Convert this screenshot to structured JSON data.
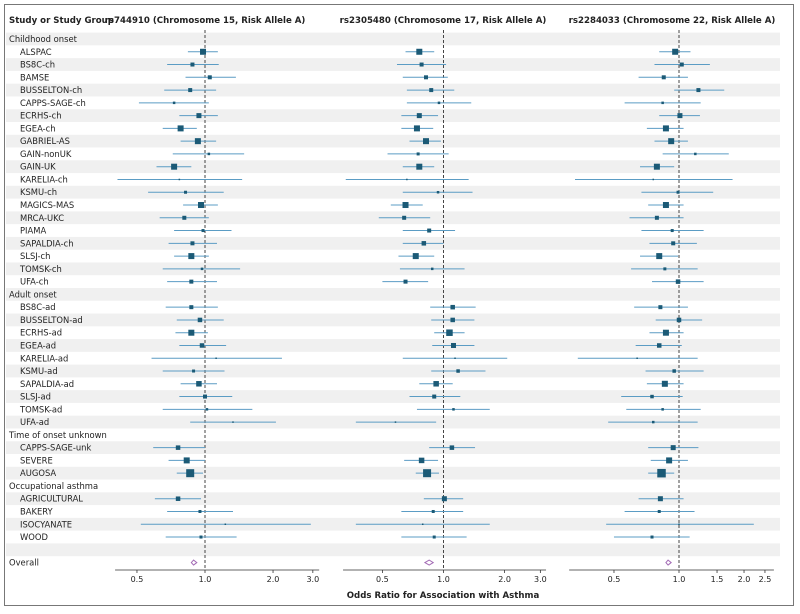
{
  "chart_data": {
    "type": "forest",
    "column_header": "Study or Study Group",
    "xlabel": "Odds Ratio for Association with Asthma",
    "scale": "log",
    "reference_line": 1.0,
    "colors": {
      "box": "#1b5a76",
      "ci": "#5b9cc4",
      "ref_line": "#444444",
      "diamond": "#a36bb5",
      "band": "#f0f0f0"
    },
    "rows": [
      {
        "label": "Childhood onset",
        "type": "group"
      },
      {
        "label": "ALSPAC",
        "type": "study"
      },
      {
        "label": "BS8C-ch",
        "type": "study"
      },
      {
        "label": "BAMSE",
        "type": "study"
      },
      {
        "label": "BUSSELTON-ch",
        "type": "study"
      },
      {
        "label": "CAPPS-SAGE-ch",
        "type": "study"
      },
      {
        "label": "ECRHS-ch",
        "type": "study"
      },
      {
        "label": "EGEA-ch",
        "type": "study"
      },
      {
        "label": "GABRIEL-AS",
        "type": "study"
      },
      {
        "label": "GAIN-nonUK",
        "type": "study"
      },
      {
        "label": "GAIN-UK",
        "type": "study"
      },
      {
        "label": "KARELIA-ch",
        "type": "study"
      },
      {
        "label": "KSMU-ch",
        "type": "study"
      },
      {
        "label": "MAGICS-MAS",
        "type": "study"
      },
      {
        "label": "MRCA-UKC",
        "type": "study"
      },
      {
        "label": "PIAMA",
        "type": "study"
      },
      {
        "label": "SAPALDIA-ch",
        "type": "study"
      },
      {
        "label": "SLSJ-ch",
        "type": "study"
      },
      {
        "label": "TOMSK-ch",
        "type": "study"
      },
      {
        "label": "UFA-ch",
        "type": "study"
      },
      {
        "label": "Adult onset",
        "type": "group"
      },
      {
        "label": "BS8C-ad",
        "type": "study"
      },
      {
        "label": "BUSSELTON-ad",
        "type": "study"
      },
      {
        "label": "ECRHS-ad",
        "type": "study"
      },
      {
        "label": "EGEA-ad",
        "type": "study"
      },
      {
        "label": "KARELIA-ad",
        "type": "study"
      },
      {
        "label": "KSMU-ad",
        "type": "study"
      },
      {
        "label": "SAPALDIA-ad",
        "type": "study"
      },
      {
        "label": "SLSJ-ad",
        "type": "study"
      },
      {
        "label": "TOMSK-ad",
        "type": "study"
      },
      {
        "label": "UFA-ad",
        "type": "study"
      },
      {
        "label": "Time of onset unknown",
        "type": "group"
      },
      {
        "label": "CAPPS-SAGE-unk",
        "type": "study"
      },
      {
        "label": "SEVERE",
        "type": "study"
      },
      {
        "label": "AUGOSA",
        "type": "study"
      },
      {
        "label": "Occupational asthma",
        "type": "group"
      },
      {
        "label": "AGRICULTURAL",
        "type": "study"
      },
      {
        "label": "BAKERY",
        "type": "study"
      },
      {
        "label": "ISOCYANATE",
        "type": "study"
      },
      {
        "label": "WOOD",
        "type": "study"
      },
      {
        "label": "",
        "type": "blank"
      },
      {
        "label": "Overall",
        "type": "overall"
      }
    ],
    "panels": [
      {
        "title": "rs744910 (Chromosome 15, Risk Allele A)",
        "xlim": [
          0.4,
          3.2
        ],
        "ticks": [
          0.5,
          1.0,
          2.0,
          3.0
        ],
        "tick_labels": [
          "0.5",
          "1.0",
          "2.0",
          "3.0"
        ],
        "estimates": [
          null,
          [
            0.98,
            0.84,
            1.14,
            6
          ],
          [
            0.88,
            0.68,
            1.15,
            4
          ],
          [
            1.05,
            0.82,
            1.37,
            4
          ],
          [
            0.86,
            0.66,
            1.12,
            4
          ],
          [
            0.73,
            0.51,
            1.04,
            2.5
          ],
          [
            0.94,
            0.77,
            1.14,
            5
          ],
          [
            0.78,
            0.65,
            0.92,
            6
          ],
          [
            0.93,
            0.78,
            1.12,
            6
          ],
          [
            1.04,
            0.72,
            1.49,
            2.5
          ],
          [
            0.73,
            0.61,
            0.87,
            6
          ],
          [
            0.77,
            0.41,
            1.46,
            1.5
          ],
          [
            0.82,
            0.56,
            1.21,
            3
          ],
          [
            0.96,
            0.8,
            1.14,
            6
          ],
          [
            0.81,
            0.63,
            1.04,
            4
          ],
          [
            0.98,
            0.73,
            1.31,
            3
          ],
          [
            0.88,
            0.69,
            1.13,
            4
          ],
          [
            0.87,
            0.73,
            1.04,
            6
          ],
          [
            0.97,
            0.65,
            1.43,
            2.5
          ],
          [
            0.87,
            0.68,
            1.13,
            4
          ],
          null,
          [
            0.87,
            0.67,
            1.14,
            4
          ],
          [
            0.95,
            0.75,
            1.21,
            4.5
          ],
          [
            0.87,
            0.74,
            1.03,
            6
          ],
          [
            0.97,
            0.77,
            1.24,
            4.5
          ],
          [
            1.12,
            0.58,
            2.19,
            1.5
          ],
          [
            0.89,
            0.65,
            1.22,
            3
          ],
          [
            0.94,
            0.78,
            1.13,
            5.5
          ],
          [
            1.0,
            0.77,
            1.32,
            4
          ],
          [
            1.02,
            0.65,
            1.62,
            2.5
          ],
          [
            1.33,
            0.86,
            2.06,
            1.5
          ],
          null,
          [
            0.76,
            0.59,
            1.0,
            4.5
          ],
          [
            0.83,
            0.69,
            1.0,
            6
          ],
          [
            0.86,
            0.75,
            0.98,
            8
          ],
          null,
          [
            0.76,
            0.6,
            0.96,
            4.5
          ],
          [
            0.95,
            0.68,
            1.33,
            3
          ],
          [
            1.23,
            0.52,
            2.94,
            1.5
          ],
          [
            0.96,
            0.67,
            1.38,
            3
          ],
          null
        ],
        "overall": [
          0.89,
          0.87,
          0.92
        ]
      },
      {
        "title": "rs2305480 (Chromosome 17, Risk Allele A)",
        "xlim": [
          0.32,
          3.2
        ],
        "ticks": [
          0.5,
          1.0,
          2.0,
          3.0
        ],
        "tick_labels": [
          "0.5",
          "1.0",
          "2.0",
          "3.0"
        ],
        "estimates": [
          null,
          [
            0.76,
            0.65,
            0.9,
            6
          ],
          [
            0.78,
            0.59,
            1.03,
            4
          ],
          [
            0.82,
            0.63,
            1.05,
            4
          ],
          [
            0.87,
            0.66,
            1.13,
            4
          ],
          [
            0.95,
            0.66,
            1.37,
            2.5
          ],
          [
            0.76,
            0.62,
            0.94,
            5
          ],
          [
            0.74,
            0.62,
            0.89,
            6
          ],
          [
            0.82,
            0.68,
            0.97,
            6
          ],
          [
            0.75,
            0.53,
            1.06,
            3
          ],
          [
            0.76,
            0.63,
            0.9,
            6
          ],
          [
            0.66,
            0.33,
            1.33,
            1.5
          ],
          [
            0.94,
            0.63,
            1.39,
            2.5
          ],
          [
            0.65,
            0.55,
            0.79,
            6
          ],
          [
            0.64,
            0.48,
            0.86,
            4
          ],
          [
            0.85,
            0.63,
            1.14,
            4
          ],
          [
            0.8,
            0.63,
            1.0,
            4.5
          ],
          [
            0.73,
            0.6,
            0.9,
            6
          ],
          [
            0.88,
            0.61,
            1.27,
            2.5
          ],
          [
            0.65,
            0.5,
            0.84,
            4
          ],
          null,
          [
            1.11,
            0.86,
            1.44,
            4.5
          ],
          [
            1.11,
            0.87,
            1.42,
            4.5
          ],
          [
            1.07,
            0.9,
            1.27,
            6.5
          ],
          [
            1.12,
            0.88,
            1.42,
            5
          ],
          [
            1.14,
            0.63,
            2.06,
            1.5
          ],
          [
            1.18,
            0.87,
            1.61,
            3.5
          ],
          [
            0.92,
            0.76,
            1.11,
            5.5
          ],
          [
            0.9,
            0.68,
            1.21,
            4
          ],
          [
            1.12,
            0.74,
            1.69,
            2.5
          ],
          [
            0.58,
            0.37,
            0.92,
            1.5
          ],
          null,
          [
            1.1,
            0.85,
            1.43,
            4.5
          ],
          [
            0.78,
            0.64,
            0.94,
            5.5
          ],
          [
            0.83,
            0.73,
            0.95,
            8
          ],
          null,
          [
            1.01,
            0.8,
            1.25,
            5
          ],
          [
            0.89,
            0.62,
            1.25,
            3
          ],
          [
            0.79,
            0.37,
            1.69,
            1.5
          ],
          [
            0.9,
            0.62,
            1.3,
            3
          ],
          null
        ],
        "overall": [
          0.85,
          0.81,
          0.89
        ]
      },
      {
        "title": "rs2284033 (Chromosome 22, Risk Allele A)",
        "xlim": [
          0.31,
          2.75
        ],
        "ticks": [
          0.5,
          1.0,
          1.5,
          2.0,
          2.5
        ],
        "tick_labels": [
          "0.5",
          "1.0",
          "1.5",
          "2.0",
          "2.5"
        ],
        "estimates": [
          null,
          [
            0.96,
            0.81,
            1.13,
            6
          ],
          [
            1.03,
            0.77,
            1.39,
            4
          ],
          [
            0.85,
            0.65,
            1.1,
            4
          ],
          [
            1.23,
            0.95,
            1.62,
            4
          ],
          [
            0.84,
            0.56,
            1.26,
            2.5
          ],
          [
            1.01,
            0.81,
            1.25,
            5
          ],
          [
            0.87,
            0.71,
            1.05,
            6
          ],
          [
            0.92,
            0.77,
            1.1,
            6
          ],
          [
            1.19,
            0.84,
            1.7,
            2.5
          ],
          [
            0.79,
            0.66,
            0.95,
            6
          ],
          [
            0.76,
            0.33,
            1.77,
            1.5
          ],
          [
            0.99,
            0.67,
            1.44,
            3
          ],
          [
            0.87,
            0.72,
            1.05,
            6
          ],
          [
            0.79,
            0.59,
            1.05,
            4
          ],
          [
            0.93,
            0.67,
            1.3,
            3
          ],
          [
            0.94,
            0.73,
            1.21,
            4
          ],
          [
            0.81,
            0.66,
            0.99,
            6
          ],
          [
            0.86,
            0.6,
            1.22,
            3
          ],
          [
            0.99,
            0.75,
            1.3,
            4.5
          ],
          null,
          [
            0.82,
            0.62,
            1.1,
            4
          ],
          [
            1.0,
            0.78,
            1.28,
            4.5
          ],
          [
            0.87,
            0.73,
            1.05,
            6
          ],
          [
            0.81,
            0.63,
            1.03,
            4.5
          ],
          [
            0.64,
            0.34,
            1.22,
            1.5
          ],
          [
            0.95,
            0.7,
            1.3,
            3.5
          ],
          [
            0.86,
            0.71,
            1.05,
            6
          ],
          [
            0.75,
            0.54,
            1.04,
            3.5
          ],
          [
            0.84,
            0.57,
            1.26,
            2.5
          ],
          [
            0.76,
            0.47,
            1.22,
            2.5
          ],
          null,
          [
            0.94,
            0.72,
            1.23,
            5
          ],
          [
            0.9,
            0.74,
            1.1,
            6
          ],
          [
            0.83,
            0.72,
            0.95,
            8.5
          ],
          null,
          [
            0.82,
            0.65,
            1.05,
            5
          ],
          [
            0.81,
            0.56,
            1.18,
            3
          ],
          [
            1.0,
            0.46,
            2.22,
            1.5
          ],
          [
            0.75,
            0.5,
            1.12,
            3
          ],
          null
        ],
        "overall": [
          0.89,
          0.87,
          0.92
        ]
      }
    ]
  }
}
